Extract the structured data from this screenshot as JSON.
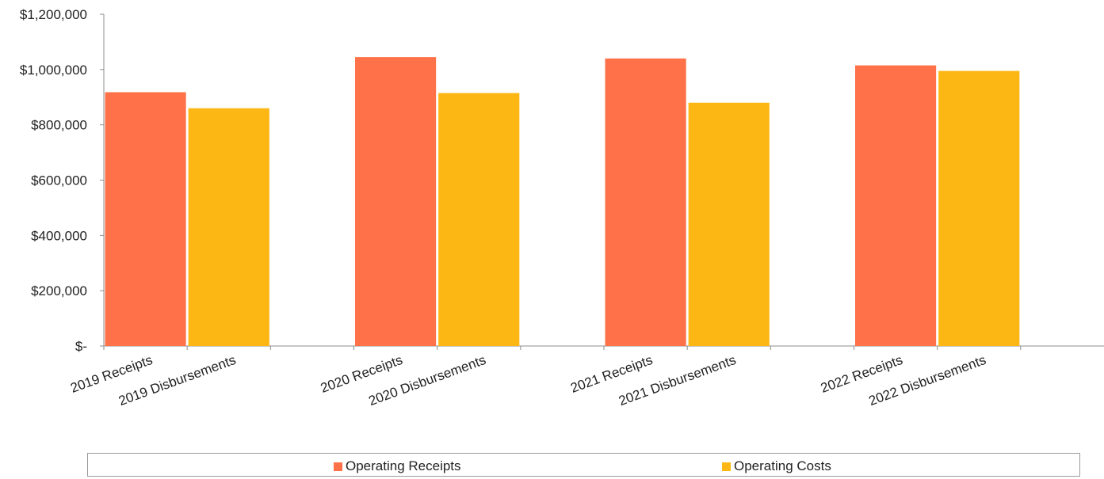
{
  "chart_data": {
    "type": "bar",
    "title": "",
    "xlabel": "",
    "ylabel": "",
    "ylim": [
      0,
      1200000
    ],
    "y_ticks": [
      0,
      200000,
      400000,
      600000,
      800000,
      1000000,
      1200000
    ],
    "y_tick_labels": [
      "$-",
      "$200,000",
      "$400,000",
      "$600,000",
      "$800,000",
      "$1,000,000",
      "$1,200,000"
    ],
    "grid": false,
    "legend_position": "bottom",
    "categories": [
      "2019 Receipts",
      "2019 Disbursements",
      "2020 Receipts",
      "2020 Disbursements",
      "2021 Receipts",
      "2021 Disbursements",
      "2022 Receipts",
      "2022 Disbursements"
    ],
    "series": [
      {
        "name": "Operating Receipts",
        "color": "#FF7148",
        "values": [
          918000,
          null,
          1045000,
          null,
          1040000,
          null,
          1015000,
          null
        ]
      },
      {
        "name": "Operating Costs",
        "color": "#FDB714",
        "values": [
          null,
          860000,
          null,
          915000,
          null,
          880000,
          null,
          995000
        ]
      }
    ]
  }
}
